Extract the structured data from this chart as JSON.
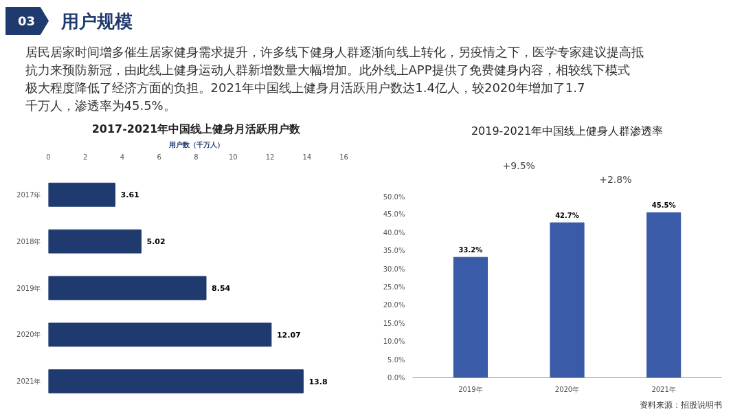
{
  "chart_data": [
    {
      "type": "bar",
      "orientation": "horizontal",
      "title": "2017-2021年中国线上健身月活跃用户数",
      "xlabel": "用户数（千万人）",
      "annotations": [
        "03",
        "用户规模",
        "居民居家时间增多催生居家健身需求提升，许多线下健身人群逐渐向线上转化，另疫情之下，医学专家建议提高抵抗力来预防新冠，由此线上健身运动人群新增数量大幅增加。此外线上APP提供了免费健身内容，相较线下模式极大程度降低了经济方面的负担。2021年中国线上健身月活跃用户数达1.4亿人，较2020年增加了1.7千万人，渗透率为45.5%。"
      ],
      "categories": [
        "2017年",
        "2018年",
        "2019年",
        "2020年",
        "2021年"
      ],
      "values": [
        3.61,
        5.02,
        8.54,
        12.07,
        13.8
      ],
      "color": "#1f3a6e",
      "xlim": [
        0,
        16
      ],
      "xticks": [
        0,
        2,
        4,
        6,
        8,
        10,
        12,
        14,
        16
      ],
      "data_labels": true,
      "grid": false
    },
    {
      "type": "bar",
      "title": "2019-2021年中国线上健身人群渗透率",
      "annotations": [
        "+9.5%",
        "+2.8%",
        "资料来源：招股说明书"
      ],
      "categories": [
        "2019年",
        "2020年",
        "2021年"
      ],
      "values": [
        33.2,
        42.7,
        45.5
      ],
      "color": "#3a5ba8",
      "ylim": [
        0,
        50
      ],
      "yticks": [
        {
          "value": 0,
          "label": "0.0%"
        },
        {
          "value": 5,
          "label": "5.0%"
        },
        {
          "value": 10,
          "label": "10.0%"
        },
        {
          "value": 15,
          "label": "15.0%"
        },
        {
          "value": 20,
          "label": "20.0%"
        },
        {
          "value": 25,
          "label": "25.0%"
        },
        {
          "value": 30,
          "label": "30.0%"
        },
        {
          "value": 35,
          "label": "35.0%"
        },
        {
          "value": 40,
          "label": "40.0%"
        },
        {
          "value": 45,
          "label": "45.0%"
        },
        {
          "value": 50,
          "label": "50.0%"
        }
      ],
      "value_labels": [
        "33.2%",
        "42.7%",
        "45.5%"
      ],
      "grid": false
    }
  ]
}
